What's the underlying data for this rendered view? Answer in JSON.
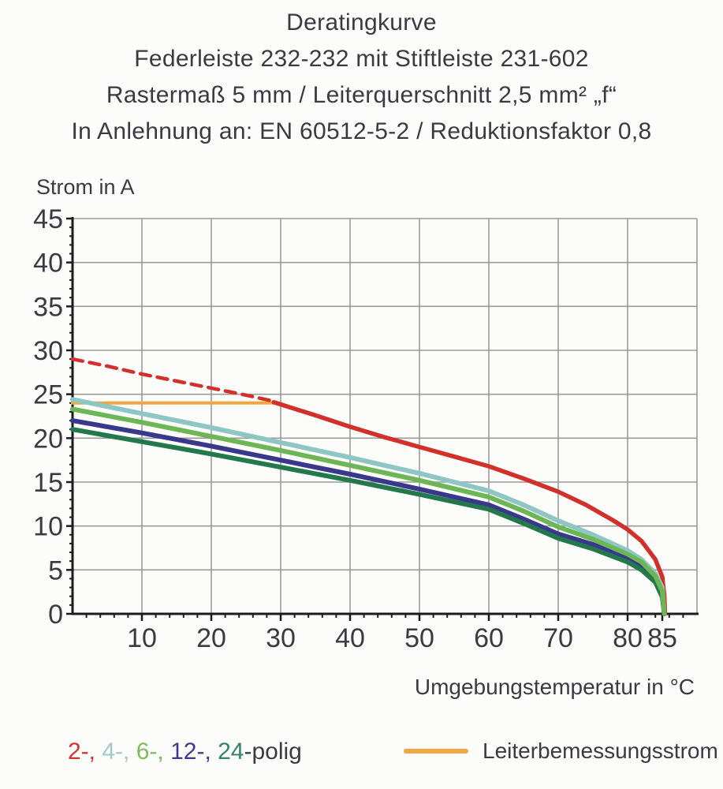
{
  "title": {
    "line1": "Deratingkurve",
    "line2": "Federleiste 232-232 mit Stiftleiste 231-602",
    "line3": "Rastermaß 5 mm / Leiterquerschnitt 2,5 mm² „f“",
    "line4": "In Anlehnung an: EN 60512-5-2 / Reduktionsfaktor 0,8"
  },
  "chart_data": {
    "type": "line",
    "title": "Deratingkurve",
    "xlabel": "Umgebungstemperatur in °C",
    "ylabel": "Strom in A",
    "xlim": [
      0,
      90
    ],
    "ylim": [
      0,
      45
    ],
    "x_major_ticks": [
      10,
      20,
      30,
      40,
      50,
      60,
      70,
      80,
      85
    ],
    "x_minor_step": 2,
    "y_major_ticks": [
      0,
      5,
      10,
      15,
      20,
      25,
      30,
      35,
      40,
      45
    ],
    "y_minor_step": 1,
    "grid": true,
    "legend_position": "bottom",
    "series": [
      {
        "name": "Leiterbemessungsstrom",
        "color": "#f2a640",
        "width": 4,
        "dash": null,
        "points": [
          [
            0,
            24.0
          ],
          [
            29.5,
            24.0
          ]
        ]
      },
      {
        "name": "2-polig (gestrichelt, oberhalb Leiterbemessungsstrom)",
        "color": "#d2302a",
        "width": 4.5,
        "dash": "13 9",
        "points": [
          [
            0,
            29.0
          ],
          [
            5,
            28.2
          ],
          [
            10,
            27.3
          ],
          [
            15,
            26.5
          ],
          [
            20,
            25.7
          ],
          [
            25,
            24.9
          ],
          [
            29,
            24.2
          ]
        ]
      },
      {
        "name": "2-polig",
        "color": "#d2302a",
        "width": 5.5,
        "dash": null,
        "points": [
          [
            29,
            24.1
          ],
          [
            35,
            22.6
          ],
          [
            40,
            21.3
          ],
          [
            45,
            20.1
          ],
          [
            50,
            19.0
          ],
          [
            55,
            17.9
          ],
          [
            60,
            16.8
          ],
          [
            65,
            15.4
          ],
          [
            70,
            13.9
          ],
          [
            74,
            12.4
          ],
          [
            78,
            10.6
          ],
          [
            80,
            9.6
          ],
          [
            82,
            8.3
          ],
          [
            84,
            6.2
          ],
          [
            85,
            4.2
          ],
          [
            85.3,
            2.0
          ],
          [
            85.4,
            0
          ]
        ]
      },
      {
        "name": "4-polig",
        "color": "#8dc6c3",
        "width": 6,
        "dash": null,
        "points": [
          [
            0,
            24.4
          ],
          [
            10,
            22.8
          ],
          [
            20,
            21.2
          ],
          [
            30,
            19.5
          ],
          [
            40,
            17.8
          ],
          [
            50,
            16.0
          ],
          [
            60,
            14.0
          ],
          [
            65,
            12.4
          ],
          [
            70,
            10.6
          ],
          [
            75,
            9.0
          ],
          [
            80,
            7.2
          ],
          [
            82,
            6.2
          ],
          [
            84,
            4.6
          ],
          [
            85,
            3.0
          ],
          [
            85.3,
            0
          ]
        ]
      },
      {
        "name": "12-polig",
        "color": "#3a388c",
        "width": 6,
        "dash": null,
        "points": [
          [
            0,
            22.0
          ],
          [
            10,
            20.6
          ],
          [
            20,
            19.1
          ],
          [
            30,
            17.5
          ],
          [
            40,
            15.9
          ],
          [
            50,
            14.2
          ],
          [
            60,
            12.4
          ],
          [
            65,
            10.8
          ],
          [
            70,
            9.1
          ],
          [
            75,
            7.9
          ],
          [
            80,
            6.3
          ],
          [
            82,
            5.4
          ],
          [
            84,
            3.9
          ],
          [
            85,
            2.2
          ],
          [
            85.3,
            0
          ]
        ]
      },
      {
        "name": "24-polig",
        "color": "#23794b",
        "width": 6,
        "dash": null,
        "points": [
          [
            0,
            21.0
          ],
          [
            10,
            19.6
          ],
          [
            20,
            18.2
          ],
          [
            30,
            16.7
          ],
          [
            40,
            15.2
          ],
          [
            50,
            13.6
          ],
          [
            60,
            11.9
          ],
          [
            65,
            10.3
          ],
          [
            70,
            8.6
          ],
          [
            75,
            7.4
          ],
          [
            80,
            5.9
          ],
          [
            82,
            5.0
          ],
          [
            84,
            3.6
          ],
          [
            85,
            1.9
          ],
          [
            85.3,
            0
          ]
        ]
      },
      {
        "name": "6-polig",
        "color": "#6db655",
        "width": 6,
        "dash": null,
        "points": [
          [
            0,
            23.3
          ],
          [
            10,
            21.8
          ],
          [
            20,
            20.2
          ],
          [
            30,
            18.6
          ],
          [
            40,
            16.9
          ],
          [
            50,
            15.2
          ],
          [
            60,
            13.3
          ],
          [
            65,
            11.7
          ],
          [
            70,
            9.9
          ],
          [
            75,
            8.5
          ],
          [
            80,
            6.8
          ],
          [
            82,
            5.9
          ],
          [
            84,
            4.3
          ],
          [
            85,
            2.6
          ],
          [
            85.3,
            0
          ]
        ]
      }
    ]
  },
  "legend": {
    "poles": [
      {
        "text": "2-, ",
        "color": "#d2342e"
      },
      {
        "text": "4-, ",
        "color": "#9ccbc8"
      },
      {
        "text": "6-, ",
        "color": "#7cbb5e"
      },
      {
        "text": "12-, ",
        "color": "#3c3a8e"
      },
      {
        "text": "24",
        "color": "#338566"
      },
      {
        "text": "-polig",
        "color": "#3a3a42"
      }
    ],
    "rated_label": "Leiterbemessungsstrom",
    "rated_color": "#f2a640"
  },
  "colors": {
    "axis": "#1c1c1e",
    "grid": "#9a9a9a",
    "text": "#3a3a42"
  }
}
